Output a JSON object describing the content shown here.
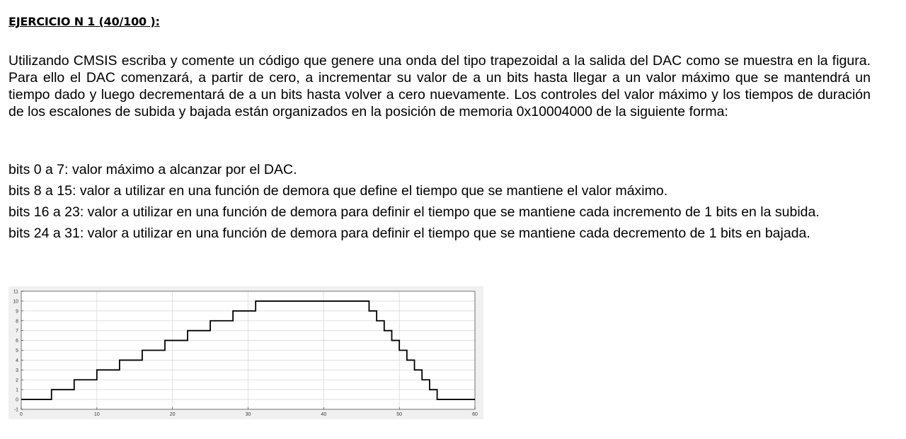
{
  "heading": "EJERCICIO N 1 (40/100  ):",
  "intro": "Utilizando CMSIS escriba y comente un código que genere una onda del tipo trapezoidal a la salida del DAC como se muestra en la figura. Para ello el DAC comenzará, a partir de cero, a incrementar su valor de a un bits hasta llegar a un valor máximo que se mantendrá un tiempo dado y luego decrementará de a un bits hasta volver a cero nuevamente. Los controles del valor máximo y los tiempos de duración de los escalones de subida y bajada están organizados en la posición de memoria 0x10004000 de la siguiente forma:",
  "bits": [
    "bits 0 a 7: valor máximo a alcanzar por el DAC.",
    "bits 8 a 15: valor a utilizar en una función de demora que define el tiempo que se mantiene el valor máximo.",
    "bits 16 a 23: valor a utilizar en una función de demora para definir el tiempo que se mantiene cada incremento de 1 bits en la subida.",
    "bits 24 a 31: valor a utilizar en una función de demora para definir el tiempo que se mantiene cada decremento de 1 bits en bajada."
  ],
  "chart_data": {
    "type": "line",
    "step": true,
    "x": [
      0,
      1,
      4,
      7,
      10,
      13,
      16,
      19,
      22,
      25,
      28,
      31,
      46,
      47,
      48,
      49,
      50,
      51,
      52,
      53,
      54,
      55,
      60
    ],
    "y": [
      0,
      0,
      1,
      2,
      3,
      4,
      5,
      6,
      7,
      8,
      9,
      10,
      9,
      8,
      7,
      6,
      5,
      4,
      3,
      2,
      1,
      0,
      0
    ],
    "xlim": [
      0,
      60
    ],
    "ylim": [
      -1,
      11
    ],
    "xticks": [
      0,
      10,
      20,
      30,
      40,
      50,
      60
    ],
    "yticks": [
      -1,
      0,
      1,
      2,
      3,
      4,
      5,
      6,
      7,
      8,
      9,
      10,
      11
    ],
    "grid": true,
    "line_color": "#000000",
    "grid_color": "#d9d9d9",
    "axes_color": "#ffffff",
    "figure_color": "#f0f0f0"
  }
}
